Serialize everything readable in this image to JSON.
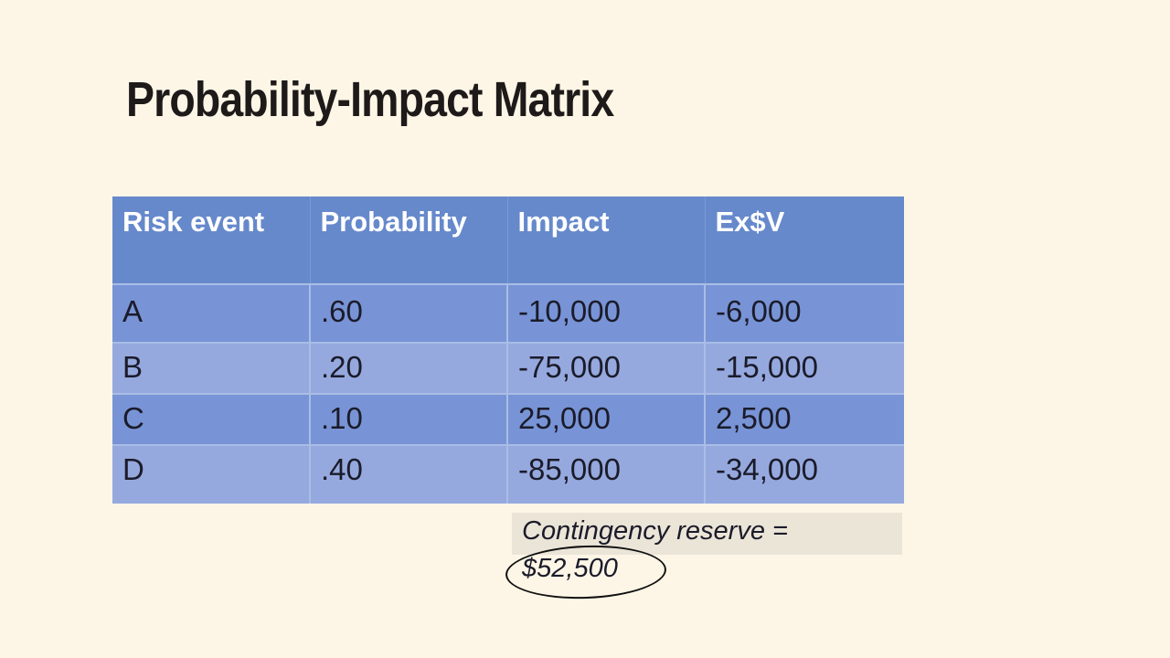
{
  "slide": {
    "title": "Probability-Impact Matrix"
  },
  "table": {
    "headers": [
      "Risk event",
      "Probability",
      "Impact",
      "Ex$V"
    ],
    "rows": [
      [
        "A",
        ".60",
        "-10,000",
        "-6,000"
      ],
      [
        "B",
        ".20",
        "-75,000",
        "-15,000"
      ],
      [
        "C",
        ".10",
        "25,000",
        "2,500"
      ],
      [
        "D",
        ".40",
        "-85,000",
        "-34,000"
      ]
    ]
  },
  "reserve": {
    "line1": "Contingency reserve =",
    "line2": "$52,500"
  },
  "colors": {
    "background": "#fdf6e6",
    "header": "#6689cc",
    "row_dark": "#7894d6",
    "row_light": "#95a9de",
    "title_text": "#1e1a1a"
  }
}
